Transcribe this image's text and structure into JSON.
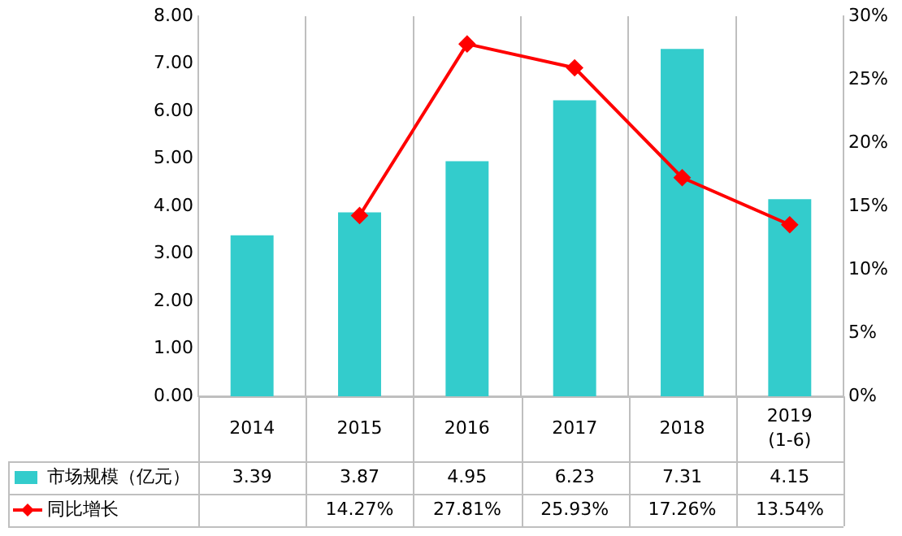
{
  "chart_data": {
    "type": "bar",
    "categories": [
      "2014",
      "2015",
      "2016",
      "2017",
      "2018",
      "2019 (1-6)"
    ],
    "series": [
      {
        "name": "市场规模（亿元）",
        "color": "#33cccc",
        "values": [
          3.39,
          3.87,
          4.95,
          6.23,
          7.31,
          4.15
        ],
        "value_labels": [
          "3.39",
          "3.87",
          "4.95",
          "6.23",
          "7.31",
          "4.15"
        ]
      },
      {
        "name": "同比增长",
        "type": "line",
        "axis": "y2",
        "color": "#ff0000",
        "marker": "diamond",
        "values": [
          null,
          14.27,
          27.81,
          25.93,
          17.26,
          13.54
        ],
        "value_labels": [
          null,
          "14.27%",
          "27.81%",
          "25.93%",
          "17.26%",
          "13.54%"
        ]
      }
    ],
    "ylim": [
      0,
      8
    ],
    "yticks": [
      {
        "value": 0,
        "label": "0.00"
      },
      {
        "value": 1,
        "label": "1.00"
      },
      {
        "value": 2,
        "label": "2.00"
      },
      {
        "value": 3,
        "label": "3.00"
      },
      {
        "value": 4,
        "label": "4.00"
      },
      {
        "value": 5,
        "label": "5.00"
      },
      {
        "value": 6,
        "label": "6.00"
      },
      {
        "value": 7,
        "label": "7.00"
      },
      {
        "value": 8,
        "label": "8.00"
      }
    ],
    "y2lim": [
      0,
      30
    ],
    "y2ticks": [
      {
        "value": 0,
        "label": "0%"
      },
      {
        "value": 5,
        "label": "5%"
      },
      {
        "value": 10,
        "label": "10%"
      },
      {
        "value": 15,
        "label": "15%"
      },
      {
        "value": 20,
        "label": "20%"
      },
      {
        "value": 25,
        "label": "25%"
      },
      {
        "value": 30,
        "label": "30%"
      }
    ],
    "grid": "x",
    "legend": "bottom"
  }
}
